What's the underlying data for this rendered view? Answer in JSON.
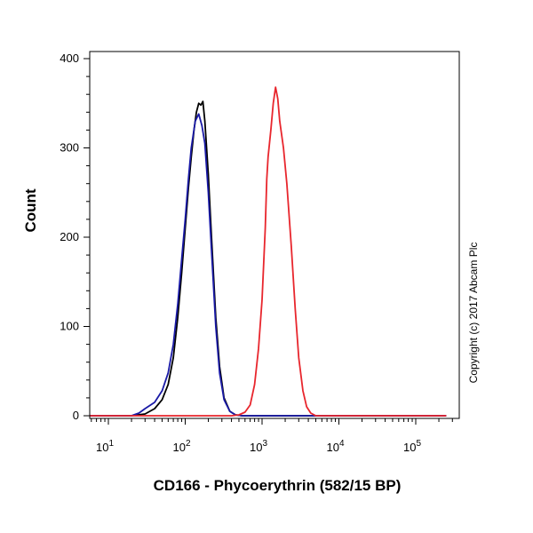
{
  "chart_data": {
    "type": "line",
    "xlabel": "CD166 - Phycoerythrin (582/15 BP)",
    "ylabel": "Count",
    "x_scale": "log",
    "xlim": [
      5,
      250000
    ],
    "ylim": [
      0,
      400
    ],
    "x_ticks": [
      {
        "value": 10,
        "base": "10",
        "exp": "1"
      },
      {
        "value": 100,
        "base": "10",
        "exp": "2"
      },
      {
        "value": 1000,
        "base": "10",
        "exp": "3"
      },
      {
        "value": 10000,
        "base": "10",
        "exp": "4"
      },
      {
        "value": 100000,
        "base": "10",
        "exp": "5"
      }
    ],
    "y_ticks": [
      "0",
      "100",
      "200",
      "300",
      "400"
    ],
    "y_tick_values": [
      0,
      100,
      200,
      300,
      400
    ],
    "grid": false,
    "series": [
      {
        "color": "#000000",
        "points": [
          [
            5,
            0
          ],
          [
            20,
            0
          ],
          [
            30,
            2
          ],
          [
            40,
            8
          ],
          [
            50,
            18
          ],
          [
            60,
            35
          ],
          [
            70,
            65
          ],
          [
            80,
            110
          ],
          [
            90,
            160
          ],
          [
            100,
            210
          ],
          [
            110,
            255
          ],
          [
            120,
            290
          ],
          [
            130,
            320
          ],
          [
            140,
            340
          ],
          [
            150,
            350
          ],
          [
            160,
            348
          ],
          [
            170,
            352
          ],
          [
            180,
            330
          ],
          [
            200,
            270
          ],
          [
            220,
            200
          ],
          [
            250,
            110
          ],
          [
            280,
            55
          ],
          [
            320,
            20
          ],
          [
            380,
            5
          ],
          [
            450,
            1
          ],
          [
            550,
            0
          ],
          [
            250000,
            0
          ]
        ]
      },
      {
        "color": "#1a1aa6",
        "points": [
          [
            5,
            0
          ],
          [
            20,
            0
          ],
          [
            25,
            3
          ],
          [
            30,
            8
          ],
          [
            40,
            15
          ],
          [
            50,
            28
          ],
          [
            60,
            48
          ],
          [
            70,
            80
          ],
          [
            80,
            125
          ],
          [
            90,
            175
          ],
          [
            100,
            220
          ],
          [
            110,
            265
          ],
          [
            120,
            300
          ],
          [
            135,
            330
          ],
          [
            150,
            338
          ],
          [
            165,
            325
          ],
          [
            180,
            305
          ],
          [
            200,
            250
          ],
          [
            220,
            185
          ],
          [
            250,
            100
          ],
          [
            280,
            48
          ],
          [
            320,
            18
          ],
          [
            380,
            5
          ],
          [
            450,
            1
          ],
          [
            550,
            0
          ],
          [
            250000,
            0
          ]
        ]
      },
      {
        "color": "#e8262d",
        "points": [
          [
            5,
            0
          ],
          [
            400,
            0
          ],
          [
            500,
            1
          ],
          [
            600,
            4
          ],
          [
            700,
            12
          ],
          [
            800,
            35
          ],
          [
            900,
            75
          ],
          [
            1000,
            130
          ],
          [
            1100,
            210
          ],
          [
            1150,
            265
          ],
          [
            1200,
            290
          ],
          [
            1300,
            320
          ],
          [
            1400,
            350
          ],
          [
            1500,
            368
          ],
          [
            1600,
            355
          ],
          [
            1700,
            330
          ],
          [
            1900,
            300
          ],
          [
            2100,
            260
          ],
          [
            2400,
            190
          ],
          [
            2700,
            120
          ],
          [
            3000,
            65
          ],
          [
            3400,
            28
          ],
          [
            3800,
            10
          ],
          [
            4300,
            3
          ],
          [
            5000,
            0
          ],
          [
            250000,
            0
          ]
        ]
      }
    ]
  },
  "copyright": "Copyright (c) 2017 Abcam Plc"
}
